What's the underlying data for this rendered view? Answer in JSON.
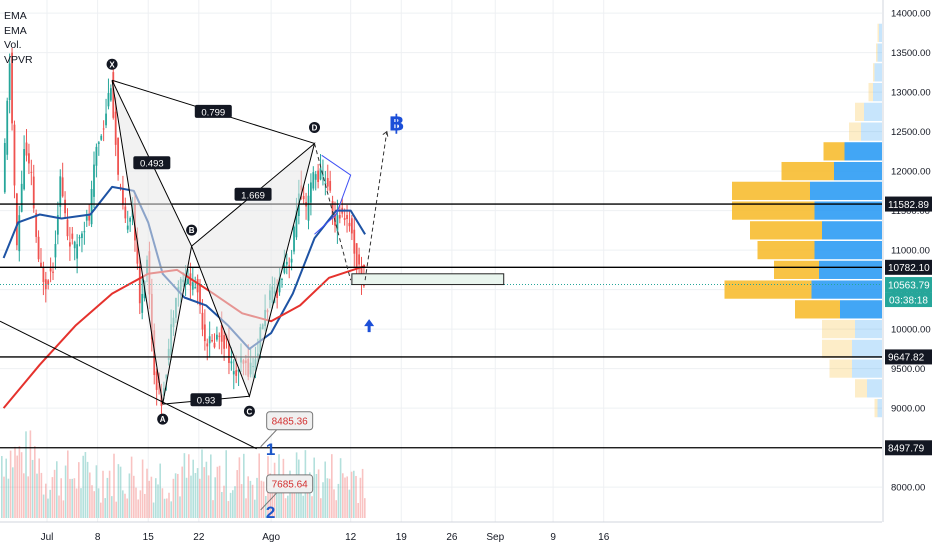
{
  "legend": [
    "EMA",
    "EMA",
    "Vol.",
    "VPVR"
  ],
  "chart_data": {
    "type": "candlestick",
    "y_axis": {
      "ticks": [
        14000,
        13500,
        13000,
        12500,
        12000,
        11500,
        11000,
        10500,
        10000,
        9500,
        9000,
        8000
      ],
      "tick_labels": [
        "14000.00",
        "13500.00",
        "13000.00",
        "12500.00",
        "12000.00",
        "11500.00",
        "11000.00",
        "10500.00",
        "10000.00",
        "9500.00",
        "9000.00",
        "8000.00"
      ],
      "ylim": [
        7600,
        14100
      ]
    },
    "x_axis": {
      "tick_labels": [
        "Jul",
        "8",
        "15",
        "22",
        "Ago",
        "12",
        "19",
        "26",
        "Sep",
        "9",
        "16"
      ]
    },
    "price_labels": [
      {
        "value": 11582.89,
        "text": "11582.89",
        "style": "dark"
      },
      {
        "value": 10782.1,
        "text": "10782.10",
        "style": "dark"
      },
      {
        "value": 10563.79,
        "text": "10563.79",
        "style": "teal"
      },
      {
        "value": 9647.82,
        "text": "9647.82",
        "style": "dark"
      },
      {
        "value": 8497.79,
        "text": "8497.79",
        "style": "dark"
      }
    ],
    "countdown": "03:38:18",
    "horizontal_levels": [
      11582.89,
      10782.1,
      9647.82,
      8497.79
    ],
    "current_price": 10563.79,
    "price_series": [
      {
        "date": "2019-06-25",
        "close": 11700
      },
      {
        "date": "2019-06-26",
        "close": 13400
      },
      {
        "date": "2019-06-27",
        "close": 11000
      },
      {
        "date": "2019-06-28",
        "close": 12300
      },
      {
        "date": "2019-06-29",
        "close": 11900
      },
      {
        "date": "2019-06-30",
        "close": 10800
      },
      {
        "date": "2019-07-01",
        "close": 10600
      },
      {
        "date": "2019-07-02",
        "close": 10800
      },
      {
        "date": "2019-07-03",
        "close": 11900
      },
      {
        "date": "2019-07-04",
        "close": 11200
      },
      {
        "date": "2019-07-05",
        "close": 11000
      },
      {
        "date": "2019-07-06",
        "close": 11300
      },
      {
        "date": "2019-07-07",
        "close": 11400
      },
      {
        "date": "2019-07-08",
        "close": 12300
      },
      {
        "date": "2019-07-09",
        "close": 12600
      },
      {
        "date": "2019-07-10",
        "close": 13150
      },
      {
        "date": "2019-07-11",
        "close": 11900
      },
      {
        "date": "2019-07-12",
        "close": 11300
      },
      {
        "date": "2019-07-13",
        "close": 11600
      },
      {
        "date": "2019-07-14",
        "close": 10300
      },
      {
        "date": "2019-07-15",
        "close": 10900
      },
      {
        "date": "2019-07-16",
        "close": 9450
      },
      {
        "date": "2019-07-17",
        "close": 9100
      },
      {
        "date": "2019-07-18",
        "close": 9750
      },
      {
        "date": "2019-07-19",
        "close": 10500
      },
      {
        "date": "2019-07-20",
        "close": 10650
      },
      {
        "date": "2019-07-21",
        "close": 10600
      },
      {
        "date": "2019-07-22",
        "close": 10500
      },
      {
        "date": "2019-07-23",
        "close": 9900
      },
      {
        "date": "2019-07-24",
        "close": 9800
      },
      {
        "date": "2019-07-25",
        "close": 9950
      },
      {
        "date": "2019-07-26",
        "close": 9800
      },
      {
        "date": "2019-07-27",
        "close": 9400
      },
      {
        "date": "2019-07-28",
        "close": 9550
      },
      {
        "date": "2019-07-29",
        "close": 9500
      },
      {
        "date": "2019-07-30",
        "close": 9600
      },
      {
        "date": "2019-07-31",
        "close": 10100
      },
      {
        "date": "2019-08-01",
        "close": 10400
      },
      {
        "date": "2019-08-02",
        "close": 10500
      },
      {
        "date": "2019-08-03",
        "close": 10850
      },
      {
        "date": "2019-08-04",
        "close": 10900
      },
      {
        "date": "2019-08-05",
        "close": 11800
      },
      {
        "date": "2019-08-06",
        "close": 11450
      },
      {
        "date": "2019-08-07",
        "close": 11950
      },
      {
        "date": "2019-08-08",
        "close": 11950
      },
      {
        "date": "2019-08-09",
        "close": 11850
      },
      {
        "date": "2019-08-10",
        "close": 11300
      },
      {
        "date": "2019-08-11",
        "close": 11500
      },
      {
        "date": "2019-08-12",
        "close": 11350
      },
      {
        "date": "2019-08-13",
        "close": 10850
      },
      {
        "date": "2019-08-14",
        "close": 10560
      }
    ],
    "ema_short": {
      "color": "#1e53a4",
      "points": [
        {
          "date": "2019-06-25",
          "value": 10900
        },
        {
          "date": "2019-06-27",
          "value": 11350
        },
        {
          "date": "2019-06-30",
          "value": 11450
        },
        {
          "date": "2019-07-03",
          "value": 11400
        },
        {
          "date": "2019-07-07",
          "value": 11450
        },
        {
          "date": "2019-07-10",
          "value": 11800
        },
        {
          "date": "2019-07-13",
          "value": 11750
        },
        {
          "date": "2019-07-15",
          "value": 11350
        },
        {
          "date": "2019-07-17",
          "value": 10700
        },
        {
          "date": "2019-07-20",
          "value": 10400
        },
        {
          "date": "2019-07-23",
          "value": 10300
        },
        {
          "date": "2019-07-26",
          "value": 10050
        },
        {
          "date": "2019-07-29",
          "value": 9750
        },
        {
          "date": "2019-08-01",
          "value": 9950
        },
        {
          "date": "2019-08-04",
          "value": 10450
        },
        {
          "date": "2019-08-07",
          "value": 11150
        },
        {
          "date": "2019-08-10",
          "value": 11500
        },
        {
          "date": "2019-08-12",
          "value": 11500
        },
        {
          "date": "2019-08-14",
          "value": 11200
        }
      ]
    },
    "ema_long": {
      "color": "#e5322d",
      "points": [
        {
          "date": "2019-06-25",
          "value": 9000
        },
        {
          "date": "2019-06-30",
          "value": 9550
        },
        {
          "date": "2019-07-05",
          "value": 10050
        },
        {
          "date": "2019-07-10",
          "value": 10450
        },
        {
          "date": "2019-07-15",
          "value": 10700
        },
        {
          "date": "2019-07-19",
          "value": 10750
        },
        {
          "date": "2019-07-24",
          "value": 10450
        },
        {
          "date": "2019-07-28",
          "value": 10200
        },
        {
          "date": "2019-08-01",
          "value": 10100
        },
        {
          "date": "2019-08-05",
          "value": 10300
        },
        {
          "date": "2019-08-09",
          "value": 10650
        },
        {
          "date": "2019-08-14",
          "value": 10800
        }
      ]
    },
    "harmonic_pattern": {
      "points": [
        {
          "label": "X",
          "date": "2019-07-10",
          "value": 13150
        },
        {
          "label": "A",
          "date": "2019-07-17",
          "value": 9050
        },
        {
          "label": "B",
          "date": "2019-07-21",
          "value": 11050
        },
        {
          "label": "C",
          "date": "2019-07-29",
          "value": 9150
        },
        {
          "label": "D",
          "date": "2019-08-07",
          "value": 12350
        }
      ],
      "ratios": [
        {
          "text": "0.799",
          "from": "X",
          "to": "D"
        },
        {
          "text": "0.493",
          "from": "X",
          "to": "B"
        },
        {
          "text": "1.669",
          "from": "B",
          "to": "D"
        },
        {
          "text": "0.93",
          "from": "A",
          "to": "C"
        }
      ]
    },
    "callouts": [
      {
        "text": "8485.36",
        "marker": "1",
        "date": "2019-07-30",
        "value": 8485.36
      },
      {
        "text": "7685.64",
        "marker": "2",
        "date": "2019-07-30",
        "value": 7685.64
      }
    ],
    "projection": {
      "symbol": "฿",
      "to_date": "2019-08-17",
      "to_value": 12500
    },
    "target_zone": [
      10563.79,
      10700
    ],
    "volume_profile": [
      {
        "price": 13750,
        "buy": 0.01,
        "sell": 0.02
      },
      {
        "price": 13500,
        "buy": 0.01,
        "sell": 0.03
      },
      {
        "price": 13250,
        "buy": 0.01,
        "sell": 0.05
      },
      {
        "price": 13000,
        "buy": 0.03,
        "sell": 0.06
      },
      {
        "price": 12750,
        "buy": 0.06,
        "sell": 0.12
      },
      {
        "price": 12500,
        "buy": 0.08,
        "sell": 0.14
      },
      {
        "price": 12250,
        "buy": 0.14,
        "sell": 0.25
      },
      {
        "price": 12000,
        "buy": 0.35,
        "sell": 0.32
      },
      {
        "price": 11750,
        "buy": 0.52,
        "sell": 0.48
      },
      {
        "price": 11500,
        "buy": 0.55,
        "sell": 0.45
      },
      {
        "price": 11250,
        "buy": 0.48,
        "sell": 0.4
      },
      {
        "price": 11000,
        "buy": 0.38,
        "sell": 0.45
      },
      {
        "price": 10750,
        "buy": 0.3,
        "sell": 0.42
      },
      {
        "price": 10500,
        "buy": 0.58,
        "sell": 0.47
      },
      {
        "price": 10250,
        "buy": 0.3,
        "sell": 0.28
      },
      {
        "price": 10000,
        "buy": 0.22,
        "sell": 0.18
      },
      {
        "price": 9750,
        "buy": 0.2,
        "sell": 0.2
      },
      {
        "price": 9500,
        "buy": 0.15,
        "sell": 0.2
      },
      {
        "price": 9250,
        "buy": 0.08,
        "sell": 0.1
      },
      {
        "price": 9000,
        "buy": 0.02,
        "sell": 0.03
      }
    ],
    "colors": {
      "up": "#26a69a",
      "down": "#ef5350",
      "ema_short": "#1e53a4",
      "ema_long": "#e5322d",
      "level": "#000000",
      "pattern_fill": "#e8e8e8",
      "pattern_line": "#000000",
      "projection": "#1c4fd8",
      "vp_buy": "#f7b924",
      "vp_sell": "#2196f3",
      "teal_label": "#26a69a"
    },
    "grid": true
  }
}
